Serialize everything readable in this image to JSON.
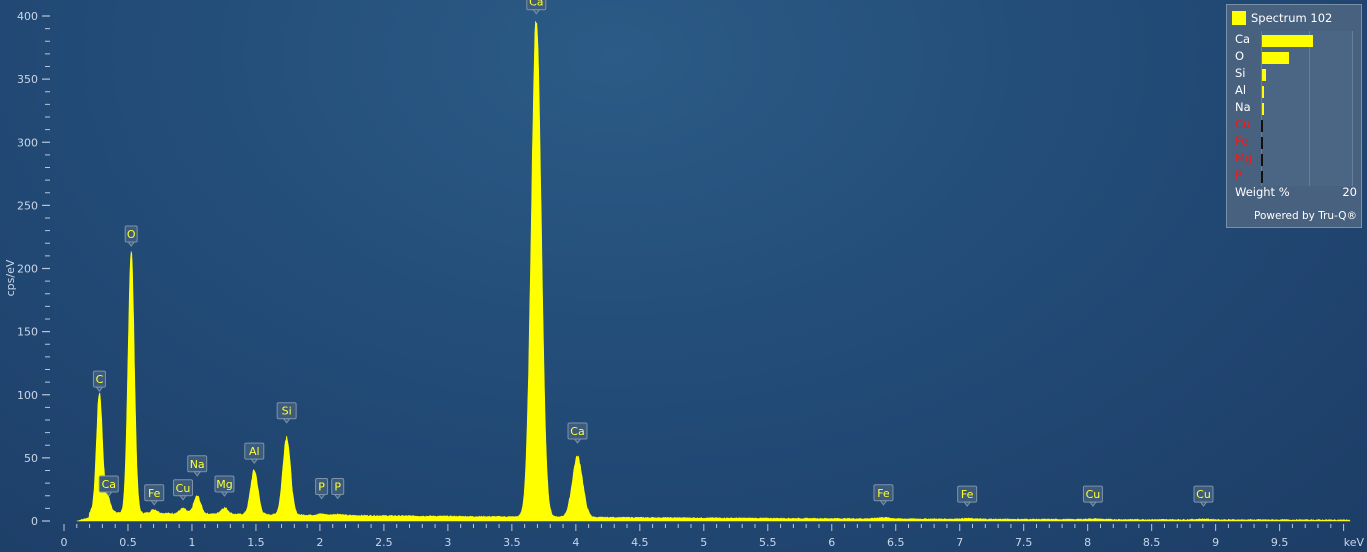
{
  "chart_data": {
    "type": "area",
    "ylabel": "cps/eV",
    "xlabel": "keV",
    "xlim": [
      0,
      10.05
    ],
    "ylim": [
      0,
      400
    ],
    "x_ticks": [
      0,
      0.5,
      1,
      1.5,
      2,
      2.5,
      3,
      3.5,
      4,
      4.5,
      5,
      5.5,
      6,
      6.5,
      7,
      7.5,
      8,
      8.5,
      9,
      9.5
    ],
    "x_tick_labels": [
      "0",
      "0.5",
      "1",
      "1.5",
      "2",
      "2.5",
      "3",
      "3.5",
      "4",
      "4.5",
      "5",
      "5.5",
      "6",
      "6.5",
      "7",
      "7.5",
      "8",
      "8.5",
      "9",
      "9.5"
    ],
    "y_ticks": [
      0,
      50,
      100,
      150,
      200,
      250,
      300,
      350,
      400
    ],
    "y_tick_labels": [
      "0",
      "50",
      "100",
      "150",
      "200",
      "250",
      "300",
      "350",
      "400"
    ],
    "series_color": "#ffff00",
    "background_level": 6,
    "peaks": [
      {
        "element": "C",
        "energy": 0.277,
        "height": 95
      },
      {
        "element": "Ca",
        "energy": 0.341,
        "height": 12
      },
      {
        "element": "O",
        "energy": 0.525,
        "height": 208
      },
      {
        "element": "Fe",
        "energy": 0.705,
        "height": 3
      },
      {
        "element": "Cu",
        "energy": 0.93,
        "height": 4
      },
      {
        "element": "Na",
        "energy": 1.041,
        "height": 14
      },
      {
        "element": "Mg",
        "energy": 1.254,
        "height": 5
      },
      {
        "element": "Al",
        "energy": 1.487,
        "height": 35
      },
      {
        "element": "Si",
        "energy": 1.74,
        "height": 62
      },
      {
        "element": "P",
        "energy": 2.013,
        "height": 1
      },
      {
        "element": "P",
        "energy": 2.139,
        "height": 1
      },
      {
        "element": "Ca",
        "energy": 3.691,
        "height": 395
      },
      {
        "element": "Ca",
        "energy": 4.013,
        "height": 48
      },
      {
        "element": "Fe",
        "energy": 6.404,
        "height": 1
      },
      {
        "element": "Fe",
        "energy": 7.058,
        "height": 0.5
      },
      {
        "element": "Cu",
        "energy": 8.041,
        "height": 0.5
      },
      {
        "element": "Cu",
        "energy": 8.905,
        "height": 0.5
      }
    ],
    "peak_labels": [
      {
        "text": "C",
        "energy": 0.277,
        "y": 106
      },
      {
        "text": "Ca",
        "energy": 0.35,
        "y": 23
      },
      {
        "text": "O",
        "energy": 0.525,
        "y": 221
      },
      {
        "text": "Fe",
        "energy": 0.705,
        "y": 16
      },
      {
        "text": "Cu",
        "energy": 0.93,
        "y": 20
      },
      {
        "text": "Na",
        "energy": 1.041,
        "y": 39
      },
      {
        "text": "Mg",
        "energy": 1.254,
        "y": 23
      },
      {
        "text": "Al",
        "energy": 1.487,
        "y": 49
      },
      {
        "text": "Si",
        "energy": 1.74,
        "y": 81
      },
      {
        "text": "P",
        "energy": 2.013,
        "y": 21
      },
      {
        "text": "P",
        "energy": 2.139,
        "y": 21
      },
      {
        "text": "Ca",
        "energy": 3.691,
        "y": 405
      },
      {
        "text": "Ca",
        "energy": 4.013,
        "y": 65
      },
      {
        "text": "Fe",
        "energy": 6.404,
        "y": 16
      },
      {
        "text": "Fe",
        "energy": 7.058,
        "y": 15
      },
      {
        "text": "Cu",
        "energy": 8.041,
        "y": 15
      },
      {
        "text": "Cu",
        "energy": 8.905,
        "y": 15
      }
    ]
  },
  "legend": {
    "spectrum_name": "Spectrum 102",
    "xlabel": "Weight %",
    "xmax": "20",
    "xmax_value": 20,
    "footer": "Powered by Tru-Q®",
    "rows": [
      {
        "element": "Ca",
        "value": 11.4,
        "color": "#ffffff"
      },
      {
        "element": "O",
        "value": 6.1,
        "color": "#ffffff"
      },
      {
        "element": "Si",
        "value": 0.9,
        "color": "#ffffff"
      },
      {
        "element": "Al",
        "value": 0.3,
        "color": "#ffffff"
      },
      {
        "element": "Na",
        "value": 0.2,
        "color": "#ffffff"
      },
      {
        "element": "Cu",
        "value": 0,
        "color": "#e02020"
      },
      {
        "element": "Fe",
        "value": 0,
        "color": "#e02020"
      },
      {
        "element": "Mg",
        "value": 0,
        "color": "#e02020"
      },
      {
        "element": "P",
        "value": 0,
        "color": "#e02020"
      }
    ]
  }
}
